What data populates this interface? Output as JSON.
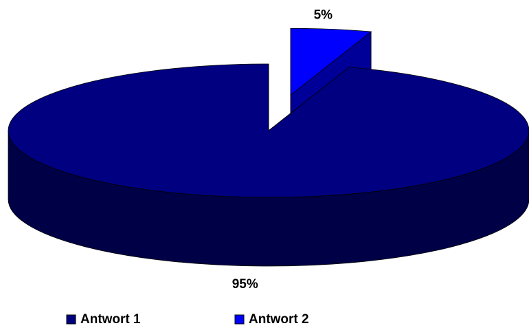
{
  "chart_data": {
    "type": "pie",
    "categories": [
      "Antwort 1",
      "Antwort 2"
    ],
    "values": [
      95,
      5
    ],
    "value_labels": [
      "95%",
      "5%"
    ],
    "colors": [
      "#000080",
      "#0000ff"
    ],
    "legend": "bottom"
  }
}
